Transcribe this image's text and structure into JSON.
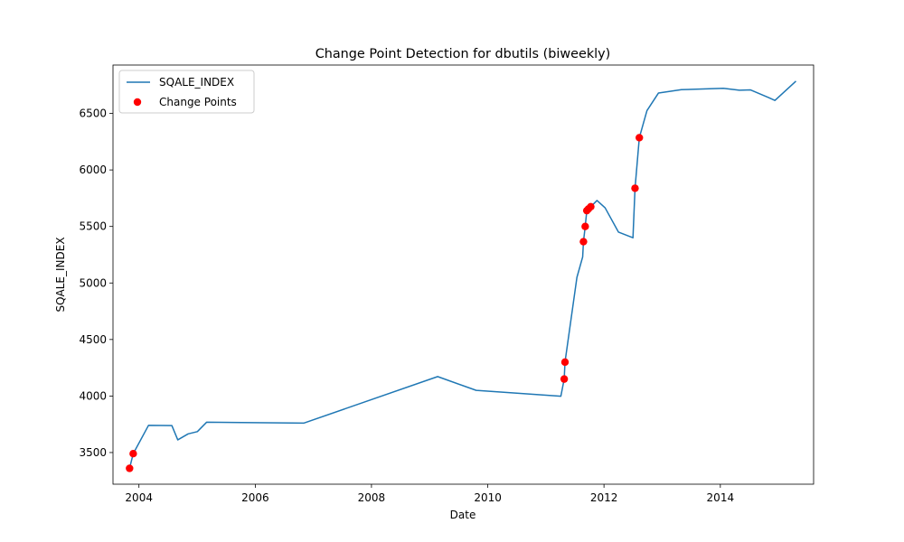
{
  "chart_data": {
    "type": "line",
    "title": "Change Point Detection for dbutils (biweekly)",
    "xlabel": "Date",
    "ylabel": "SQALE_INDEX",
    "x_type": "date",
    "xlim": [
      "2003-07-22",
      "2015-08-10"
    ],
    "ylim": [
      3220,
      6928
    ],
    "xticks": [
      "2004",
      "2006",
      "2008",
      "2010",
      "2012",
      "2014"
    ],
    "xtick_dates": [
      "2004-01-01",
      "2006-01-01",
      "2008-01-01",
      "2010-01-01",
      "2012-01-01",
      "2014-01-01"
    ],
    "yticks": [
      3500,
      4000,
      4500,
      5000,
      5500,
      6000,
      6500
    ],
    "grid": false,
    "legend_position": "upper left",
    "series": [
      {
        "name": "SQALE_INDEX",
        "color": "#1f77b4",
        "type": "line",
        "points": [
          [
            "2003-11-03",
            3360
          ],
          [
            "2003-11-26",
            3490
          ],
          [
            "2004-03-01",
            3740
          ],
          [
            "2004-07-26",
            3738
          ],
          [
            "2004-09-01",
            3612
          ],
          [
            "2004-11-05",
            3665
          ],
          [
            "2005-01-02",
            3685
          ],
          [
            "2005-03-01",
            3768
          ],
          [
            "2006-11-01",
            3760
          ],
          [
            "2009-02-20",
            4172
          ],
          [
            "2009-10-20",
            4050
          ],
          [
            "2011-04-05",
            3998
          ],
          [
            "2011-04-26",
            4150
          ],
          [
            "2011-05-01",
            4300
          ],
          [
            "2011-07-15",
            5050
          ],
          [
            "2011-08-20",
            5230
          ],
          [
            "2011-08-25",
            5365
          ],
          [
            "2011-09-05",
            5500
          ],
          [
            "2011-09-15",
            5640
          ],
          [
            "2011-09-25",
            5655
          ],
          [
            "2011-10-10",
            5675
          ],
          [
            "2011-11-18",
            5730
          ],
          [
            "2012-01-08",
            5665
          ],
          [
            "2012-04-01",
            5450
          ],
          [
            "2012-07-01",
            5400
          ],
          [
            "2012-07-14",
            5838
          ],
          [
            "2012-08-10",
            6285
          ],
          [
            "2012-09-27",
            6525
          ],
          [
            "2012-12-08",
            6680
          ],
          [
            "2013-05-01",
            6710
          ],
          [
            "2014-01-20",
            6722
          ],
          [
            "2014-05-01",
            6705
          ],
          [
            "2014-07-10",
            6708
          ],
          [
            "2014-11-01",
            6640
          ],
          [
            "2014-12-10",
            6615
          ],
          [
            "2015-04-18",
            6782
          ]
        ]
      },
      {
        "name": "Change Points",
        "color": "#ff0000",
        "type": "scatter",
        "points": [
          [
            "2003-11-03",
            3360
          ],
          [
            "2003-11-26",
            3490
          ],
          [
            "2011-04-26",
            4150
          ],
          [
            "2011-05-01",
            4300
          ],
          [
            "2011-08-25",
            5365
          ],
          [
            "2011-09-05",
            5500
          ],
          [
            "2011-09-15",
            5640
          ],
          [
            "2011-09-25",
            5655
          ],
          [
            "2011-10-10",
            5675
          ],
          [
            "2012-07-14",
            5838
          ],
          [
            "2012-08-10",
            6285
          ]
        ]
      }
    ]
  }
}
